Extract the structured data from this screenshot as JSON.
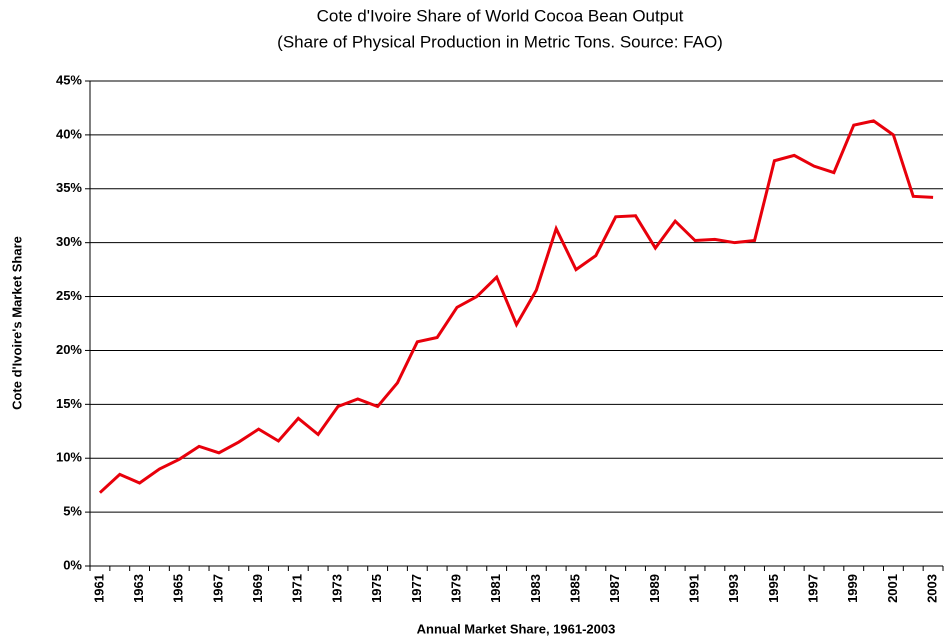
{
  "chart_data": {
    "type": "line",
    "title": "Cote d'Ivoire Share of World Cocoa Bean Output",
    "subtitle": "(Share of Physical Production in Metric Tons.  Source: FAO)",
    "x_label": "Annual Market Share, 1961-2003",
    "y_label": "Cote d'Ivoire's Market Share",
    "categories": [
      "1961",
      null,
      "1963",
      null,
      "1965",
      null,
      "1967",
      null,
      "1969",
      null,
      "1971",
      null,
      "1973",
      null,
      "1975",
      null,
      "1977",
      null,
      "1979",
      null,
      "1981",
      null,
      "1983",
      null,
      "1985",
      null,
      "1987",
      null,
      "1989",
      null,
      "1991",
      null,
      "1993",
      null,
      "1995",
      null,
      "1997",
      null,
      "1999",
      null,
      "2001",
      null,
      "2003"
    ],
    "series": [
      {
        "name": "Cote d'Ivoire",
        "color": "#e8000b",
        "values": [
          6.8,
          8.5,
          7.7,
          9.0,
          9.9,
          11.1,
          10.5,
          11.5,
          12.7,
          11.6,
          13.7,
          12.2,
          14.8,
          15.5,
          14.8,
          17.0,
          20.8,
          21.2,
          24.0,
          25.0,
          26.8,
          22.4,
          25.6,
          31.3,
          27.5,
          28.8,
          32.4,
          32.5,
          29.5,
          32.0,
          30.2,
          30.3,
          30.0,
          30.2,
          37.6,
          38.1,
          37.1,
          36.5,
          40.9,
          41.3,
          40.0,
          34.3,
          34.2
        ]
      }
    ],
    "ylim": [
      0,
      45
    ],
    "yticks": [
      {
        "value": 0,
        "label": "0%"
      },
      {
        "value": 5,
        "label": "5%"
      },
      {
        "value": 10,
        "label": "10%"
      },
      {
        "value": 15,
        "label": "15%"
      },
      {
        "value": 20,
        "label": "20%"
      },
      {
        "value": 25,
        "label": "25%"
      },
      {
        "value": 30,
        "label": "30%"
      },
      {
        "value": 35,
        "label": "35%"
      },
      {
        "value": 40,
        "label": "40%"
      },
      {
        "value": 45,
        "label": "45%"
      }
    ],
    "grid": true
  }
}
